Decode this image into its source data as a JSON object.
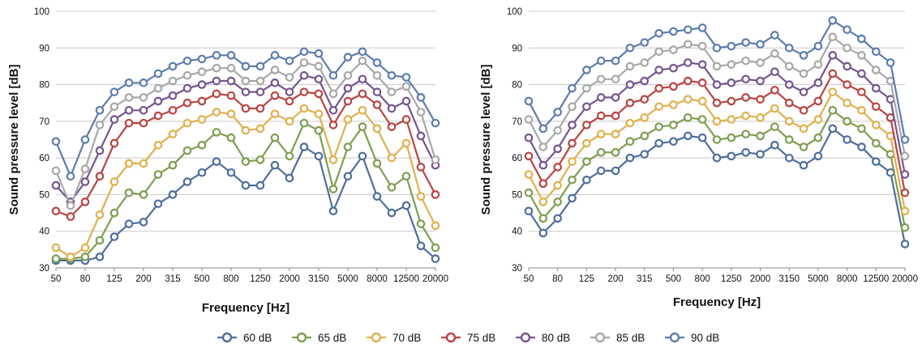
{
  "legend": {
    "entries": [
      {
        "label": "60 dB",
        "color": "#4F6E9E"
      },
      {
        "label": "65 dB",
        "color": "#7E9E52"
      },
      {
        "label": "70 dB",
        "color": "#E0B04E"
      },
      {
        "label": "75 dB",
        "color": "#B94543"
      },
      {
        "label": "80 dB",
        "color": "#76558F"
      },
      {
        "label": "85 dB",
        "color": "#A8A8A8"
      },
      {
        "label": "90 dB",
        "color": "#5D7DAE"
      }
    ],
    "position": "bottom",
    "marker": "open-circle"
  },
  "chart_data": [
    {
      "type": "line",
      "xlabel": "Frequency [Hz]",
      "ylabel": "Sound pressure level [dB]",
      "ylim": [
        30,
        100
      ],
      "y_ticks": [
        "30",
        "40",
        "50",
        "60",
        "70",
        "80",
        "90",
        "100"
      ],
      "x_tick_labels": [
        "50",
        "80",
        "125",
        "200",
        "315",
        "500",
        "800",
        "1250",
        "2000",
        "3150",
        "5000",
        "8000",
        "12500",
        "20000"
      ],
      "grid": "horizontal",
      "categories": [
        "50",
        "63",
        "80",
        "100",
        "125",
        "160",
        "200",
        "250",
        "315",
        "400",
        "500",
        "630",
        "800",
        "1000",
        "1250",
        "1600",
        "2000",
        "2500",
        "3150",
        "4000",
        "5000",
        "6300",
        "8000",
        "10000",
        "12500",
        "16000",
        "20000"
      ],
      "series": [
        {
          "name": "60 dB",
          "color": "#4F6E9E",
          "values": [
            32,
            32,
            32,
            33,
            38.5,
            42,
            42.5,
            47.5,
            50,
            53.5,
            56,
            59,
            56,
            52.5,
            52.5,
            58,
            54.5,
            63,
            60.5,
            45.5,
            55,
            60.5,
            49.5,
            45,
            47,
            36,
            32.5
          ]
        },
        {
          "name": "65 dB",
          "color": "#7E9E52",
          "values": [
            32.5,
            32.5,
            33,
            37.5,
            45,
            50.5,
            50,
            55.5,
            58,
            62,
            63.5,
            67,
            65.5,
            59,
            59.5,
            65.5,
            60.5,
            69.5,
            67.5,
            51.5,
            63,
            68.5,
            58.5,
            52,
            55,
            42,
            35.5
          ]
        },
        {
          "name": "70 dB",
          "color": "#E0B04E",
          "values": [
            35.5,
            33,
            35.5,
            44.5,
            53.5,
            58.5,
            58.5,
            63.5,
            66.5,
            69.5,
            70.5,
            72.5,
            72,
            67.5,
            68,
            72,
            70,
            73.5,
            72,
            59.5,
            70.5,
            73,
            68,
            60,
            64,
            49.5,
            41.5
          ]
        },
        {
          "name": "75 dB",
          "color": "#B94543",
          "values": [
            45.5,
            44,
            48,
            55,
            64,
            69.5,
            69.5,
            71.5,
            73,
            75,
            75.5,
            77.5,
            77,
            73.5,
            73.5,
            77,
            75.5,
            78,
            77.5,
            69,
            75.5,
            77.5,
            74.5,
            68.5,
            70.5,
            57.5,
            50
          ]
        },
        {
          "name": "80 dB",
          "color": "#76558F",
          "values": [
            52.5,
            48,
            53.5,
            62,
            70.5,
            73,
            73,
            75.5,
            77,
            79,
            80,
            81,
            81,
            78,
            78,
            80.5,
            78,
            82.5,
            81.5,
            73,
            79,
            81.5,
            78,
            73.5,
            75.5,
            66,
            58
          ]
        },
        {
          "name": "85 dB",
          "color": "#A8A8A8",
          "values": [
            56.5,
            47,
            57,
            69,
            74,
            76.5,
            76.5,
            79,
            81,
            82.5,
            83.5,
            84.5,
            84.5,
            81,
            81,
            84,
            82,
            86,
            85,
            77.5,
            82.5,
            86.5,
            82.5,
            78,
            79.5,
            72.5,
            59.5
          ]
        },
        {
          "name": "90 dB",
          "color": "#5D7DAE",
          "values": [
            64.5,
            55,
            65,
            73,
            78,
            80.5,
            80.5,
            83,
            85,
            86.5,
            87,
            88,
            88,
            85,
            85,
            88,
            86.5,
            89,
            88.5,
            82.5,
            87.5,
            89,
            86,
            82.5,
            82,
            76.5,
            69.5
          ]
        }
      ]
    },
    {
      "type": "line",
      "xlabel": "Frequency [Hz]",
      "ylabel": "Sound pressure level [dB]",
      "ylim": [
        30,
        100
      ],
      "y_ticks": [
        "30",
        "40",
        "50",
        "60",
        "70",
        "80",
        "90",
        "100"
      ],
      "x_tick_labels": [
        "50",
        "80",
        "125",
        "200",
        "315",
        "500",
        "800",
        "1250",
        "2000",
        "3150",
        "5000",
        "8000",
        "12500",
        "20000"
      ],
      "grid": "horizontal",
      "categories": [
        "50",
        "63",
        "80",
        "100",
        "125",
        "160",
        "200",
        "250",
        "315",
        "400",
        "500",
        "630",
        "800",
        "1000",
        "1250",
        "1600",
        "2000",
        "2500",
        "3150",
        "4000",
        "5000",
        "6300",
        "8000",
        "10000",
        "12500",
        "16000",
        "20000"
      ],
      "series": [
        {
          "name": "60 dB",
          "color": "#4F6E9E",
          "values": [
            45.5,
            39.5,
            43.5,
            49,
            54,
            56.5,
            56.5,
            60,
            61,
            64,
            64.5,
            66,
            65.5,
            60,
            60.5,
            61.5,
            61,
            63.5,
            60,
            58,
            60.5,
            68,
            65,
            63,
            59,
            56,
            36.5
          ]
        },
        {
          "name": "65 dB",
          "color": "#7E9E52",
          "values": [
            50.5,
            43.5,
            48,
            54,
            59,
            61.5,
            61.5,
            64.5,
            66,
            68.5,
            69,
            71,
            70.5,
            65,
            65.5,
            66.5,
            66,
            68.5,
            65,
            63,
            65.5,
            73,
            70,
            68,
            64,
            61,
            41
          ]
        },
        {
          "name": "70 dB",
          "color": "#E0B04E",
          "values": [
            55.5,
            48,
            52.5,
            59,
            64,
            66.5,
            66.5,
            69.5,
            71,
            74,
            74.5,
            76,
            75.5,
            70,
            70.5,
            71.5,
            71,
            73.5,
            70,
            68,
            70.5,
            78,
            75,
            73,
            69,
            66,
            45.5
          ]
        },
        {
          "name": "75 dB",
          "color": "#B94543",
          "values": [
            60.5,
            53,
            57.5,
            64,
            69,
            71.5,
            71.5,
            75,
            76,
            79,
            79.5,
            81,
            80.5,
            75,
            75.5,
            76.5,
            76,
            78.5,
            75,
            73,
            75.5,
            83,
            80,
            78,
            74,
            71,
            50.5
          ]
        },
        {
          "name": "80 dB",
          "color": "#76558F",
          "values": [
            65.5,
            58,
            62.5,
            69,
            74,
            76.5,
            76.5,
            80,
            81,
            84,
            84.5,
            86,
            85.5,
            80,
            80.5,
            81.5,
            81,
            83.5,
            80,
            78,
            80.5,
            88,
            85,
            83,
            79,
            76,
            55.5
          ]
        },
        {
          "name": "85 dB",
          "color": "#A8A8A8",
          "values": [
            70.5,
            63,
            67.5,
            74,
            79,
            81.5,
            81.5,
            85,
            86,
            89,
            89.5,
            91,
            90.5,
            85,
            85.5,
            86.5,
            86,
            88.5,
            85,
            83,
            85.5,
            93,
            90,
            88,
            84,
            81,
            60.5
          ]
        },
        {
          "name": "90 dB",
          "color": "#5D7DAE",
          "values": [
            75.5,
            68,
            72.5,
            79,
            84,
            86.5,
            86.5,
            90,
            91.5,
            94,
            94.5,
            95,
            95.5,
            90,
            90.5,
            91.5,
            91,
            93.5,
            90,
            88,
            90.5,
            97.5,
            95,
            92.5,
            89,
            86,
            65
          ]
        }
      ]
    }
  ]
}
